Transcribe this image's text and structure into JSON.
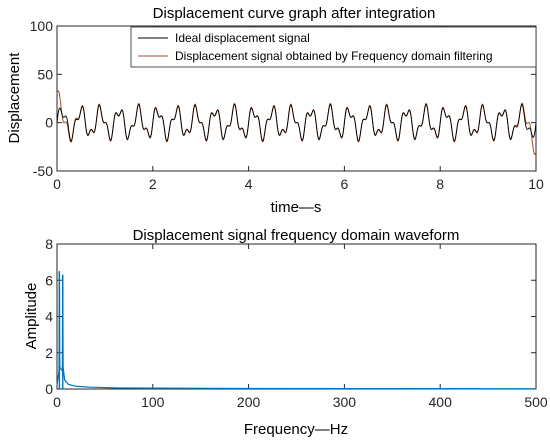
{
  "chart_data": [
    {
      "type": "line",
      "title": "Displacement curve graph after integration",
      "xlabel": "time—s",
      "ylabel": "Displacement",
      "xlim": [
        0,
        10
      ],
      "ylim": [
        -50,
        100
      ],
      "xticks": [
        "0",
        "2",
        "4",
        "6",
        "8",
        "10"
      ],
      "yticks": [
        "-50",
        "0",
        "50",
        "100"
      ],
      "grid": false,
      "legend_position": "top-right",
      "signal_model": {
        "components": [
          {
            "amplitude": 13,
            "frequency_hz": 2.5
          },
          {
            "amplitude": 6,
            "frequency_hz": 6
          }
        ]
      },
      "series": [
        {
          "name": "Ideal displacement signal",
          "color": "#000000"
        },
        {
          "name": "Displacement signal obtained by Frequency domain filtering",
          "color": "#a0522d",
          "edge_overshoot": {
            "start": 30,
            "end": 30
          }
        }
      ]
    },
    {
      "type": "line",
      "title": "Displacement signal frequency domain waveform",
      "xlabel": "Frequency—Hz",
      "ylabel": "Amplitude",
      "xlim": [
        0,
        500
      ],
      "ylim": [
        0,
        8
      ],
      "xticks": [
        "0",
        "100",
        "200",
        "300",
        "400",
        "500"
      ],
      "yticks": [
        "0",
        "2",
        "4",
        "6",
        "8"
      ],
      "grid": false,
      "series": [
        {
          "color": "#0072bd",
          "peaks": [
            {
              "x": 2.5,
              "y": 6.5
            },
            {
              "x": 6,
              "y": 6.3
            }
          ],
          "baseline": 0.05
        }
      ]
    }
  ]
}
